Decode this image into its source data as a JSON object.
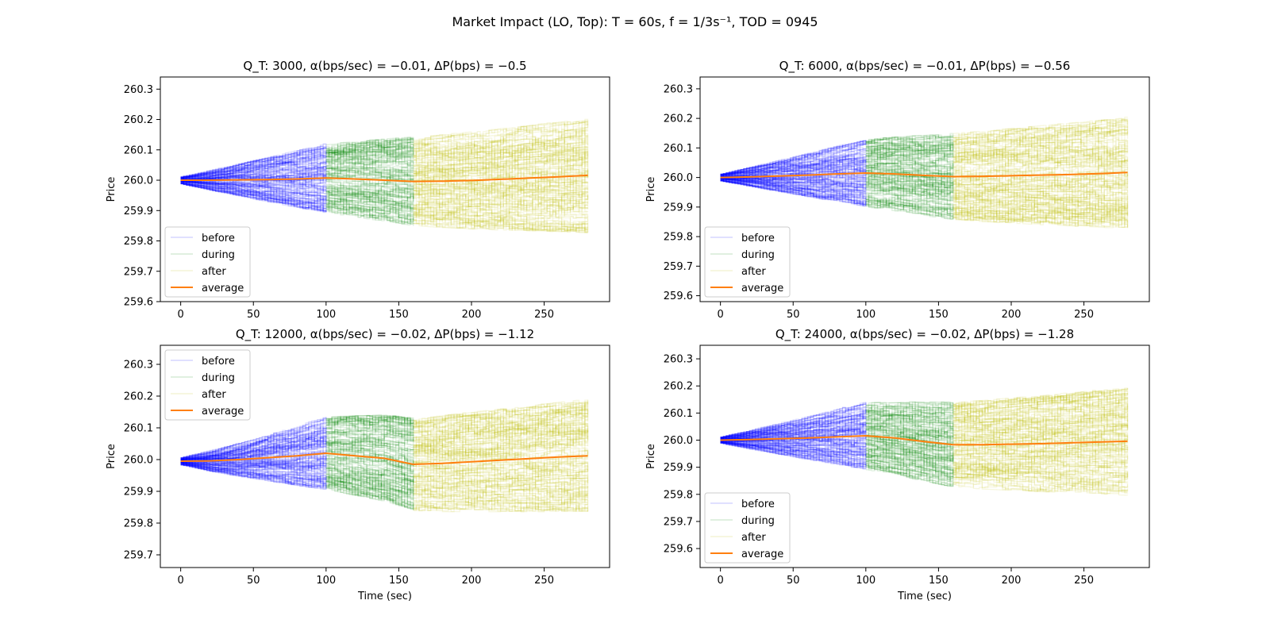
{
  "suptitle": "Market Impact (LO, Top): T = 60s, f = 1/3s⁻¹, TOD = 0945",
  "chart_data": [
    {
      "type": "line",
      "title": "Q_T: 3000, α(bps/sec) = −0.01, ΔP(bps) = −0.5",
      "xlabel": "",
      "ylabel": "Price",
      "xlim": [
        -14,
        295
      ],
      "ylim": [
        259.6,
        260.34
      ],
      "xticks": [
        0,
        50,
        100,
        150,
        200,
        250
      ],
      "yticks": [
        259.6,
        259.7,
        259.8,
        259.9,
        260.0,
        260.1,
        260.2,
        260.3
      ],
      "legend": "lower-left",
      "phases": [
        {
          "name": "before",
          "range": [
            0,
            100
          ],
          "spread_start": 0.012,
          "spread_end": 0.11,
          "color": "#0000ff"
        },
        {
          "name": "during",
          "range": [
            100,
            160
          ],
          "spread_start": 0.11,
          "spread_end": 0.14,
          "color": "#008000"
        },
        {
          "name": "after",
          "range": [
            160,
            280
          ],
          "spread_start": 0.14,
          "spread_end": 0.18,
          "color": "#bfbf00"
        }
      ],
      "series": [
        {
          "name": "before",
          "color": "#0000ff",
          "paths": 150
        },
        {
          "name": "during",
          "color": "#008000",
          "paths": 150
        },
        {
          "name": "after",
          "color": "#bfbf00",
          "paths": 150
        },
        {
          "name": "average",
          "color": "#ff7f0e",
          "x": [
            0,
            20,
            40,
            60,
            80,
            100,
            120,
            140,
            160,
            180,
            200,
            220,
            240,
            260,
            280
          ],
          "values": [
            260.0,
            260.0,
            260.001,
            260.002,
            260.004,
            260.007,
            260.004,
            260.0,
            259.996,
            259.997,
            259.999,
            260.003,
            260.007,
            260.011,
            260.016
          ]
        }
      ]
    },
    {
      "type": "line",
      "title": "Q_T: 6000, α(bps/sec) = −0.01, ΔP(bps) = −0.56",
      "xlabel": "",
      "ylabel": "Price",
      "xlim": [
        -14,
        295
      ],
      "ylim": [
        259.58,
        260.34
      ],
      "xticks": [
        0,
        50,
        100,
        150,
        200,
        250
      ],
      "yticks": [
        259.6,
        259.7,
        259.8,
        259.9,
        260.0,
        260.1,
        260.2,
        260.3
      ],
      "legend": "lower-left",
      "phases": [
        {
          "name": "before",
          "range": [
            0,
            100
          ],
          "spread_start": 0.012,
          "spread_end": 0.11,
          "color": "#0000ff"
        },
        {
          "name": "during",
          "range": [
            100,
            160
          ],
          "spread_start": 0.11,
          "spread_end": 0.14,
          "color": "#008000"
        },
        {
          "name": "after",
          "range": [
            160,
            280
          ],
          "spread_start": 0.14,
          "spread_end": 0.18,
          "color": "#bfbf00"
        }
      ],
      "series": [
        {
          "name": "before",
          "color": "#0000ff",
          "paths": 150
        },
        {
          "name": "during",
          "color": "#008000",
          "paths": 150
        },
        {
          "name": "after",
          "color": "#bfbf00",
          "paths": 150
        },
        {
          "name": "average",
          "color": "#ff7f0e",
          "x": [
            0,
            20,
            40,
            60,
            80,
            100,
            120,
            140,
            160,
            180,
            200,
            220,
            240,
            260,
            280
          ],
          "values": [
            260.0,
            260.002,
            260.005,
            260.008,
            260.012,
            260.015,
            260.012,
            260.007,
            260.003,
            260.004,
            260.006,
            260.008,
            260.01,
            260.013,
            260.017
          ]
        }
      ]
    },
    {
      "type": "line",
      "title": "Q_T: 12000, α(bps/sec) = −0.02, ΔP(bps) = −1.12",
      "xlabel": "Time (sec)",
      "ylabel": "Price",
      "xlim": [
        -14,
        295
      ],
      "ylim": [
        259.66,
        260.36
      ],
      "xticks": [
        0,
        50,
        100,
        150,
        200,
        250
      ],
      "yticks": [
        259.7,
        259.8,
        259.9,
        260.0,
        260.1,
        260.2,
        260.3
      ],
      "legend": "upper-left",
      "phases": [
        {
          "name": "before",
          "range": [
            0,
            100
          ],
          "spread_start": 0.012,
          "spread_end": 0.11,
          "color": "#0000ff"
        },
        {
          "name": "during",
          "range": [
            100,
            160
          ],
          "spread_start": 0.11,
          "spread_end": 0.14,
          "color": "#008000"
        },
        {
          "name": "after",
          "range": [
            160,
            280
          ],
          "spread_start": 0.14,
          "spread_end": 0.17,
          "color": "#bfbf00"
        }
      ],
      "series": [
        {
          "name": "before",
          "color": "#0000ff",
          "paths": 150
        },
        {
          "name": "during",
          "color": "#008000",
          "paths": 150
        },
        {
          "name": "after",
          "color": "#bfbf00",
          "paths": 150
        },
        {
          "name": "average",
          "color": "#ff7f0e",
          "x": [
            0,
            20,
            40,
            60,
            80,
            100,
            120,
            140,
            160,
            180,
            200,
            220,
            240,
            260,
            280
          ],
          "values": [
            259.995,
            259.996,
            260.0,
            260.006,
            260.012,
            260.02,
            260.012,
            260.004,
            259.985,
            259.988,
            259.993,
            259.998,
            260.003,
            260.008,
            260.012
          ]
        }
      ]
    },
    {
      "type": "line",
      "title": "Q_T: 24000, α(bps/sec) = −0.02, ΔP(bps) = −1.28",
      "xlabel": "Time (sec)",
      "ylabel": "Price",
      "xlim": [
        -14,
        295
      ],
      "ylim": [
        259.53,
        260.35
      ],
      "xticks": [
        0,
        50,
        100,
        150,
        200,
        250
      ],
      "yticks": [
        259.6,
        259.7,
        259.8,
        259.9,
        260.0,
        260.1,
        260.2,
        260.3
      ],
      "legend": "lower-left",
      "phases": [
        {
          "name": "before",
          "range": [
            0,
            100
          ],
          "spread_start": 0.012,
          "spread_end": 0.12,
          "color": "#0000ff"
        },
        {
          "name": "during",
          "range": [
            100,
            160
          ],
          "spread_start": 0.12,
          "spread_end": 0.15,
          "color": "#008000"
        },
        {
          "name": "after",
          "range": [
            160,
            280
          ],
          "spread_start": 0.15,
          "spread_end": 0.19,
          "color": "#bfbf00"
        }
      ],
      "series": [
        {
          "name": "before",
          "color": "#0000ff",
          "paths": 150
        },
        {
          "name": "during",
          "color": "#008000",
          "paths": 150
        },
        {
          "name": "after",
          "color": "#bfbf00",
          "paths": 150
        },
        {
          "name": "average",
          "color": "#ff7f0e",
          "x": [
            0,
            20,
            40,
            60,
            80,
            100,
            120,
            140,
            160,
            180,
            200,
            220,
            240,
            260,
            280
          ],
          "values": [
            260.0,
            260.002,
            260.005,
            260.008,
            260.012,
            260.016,
            260.008,
            259.995,
            259.983,
            259.983,
            259.985,
            259.987,
            259.99,
            259.993,
            259.996
          ]
        }
      ]
    }
  ]
}
